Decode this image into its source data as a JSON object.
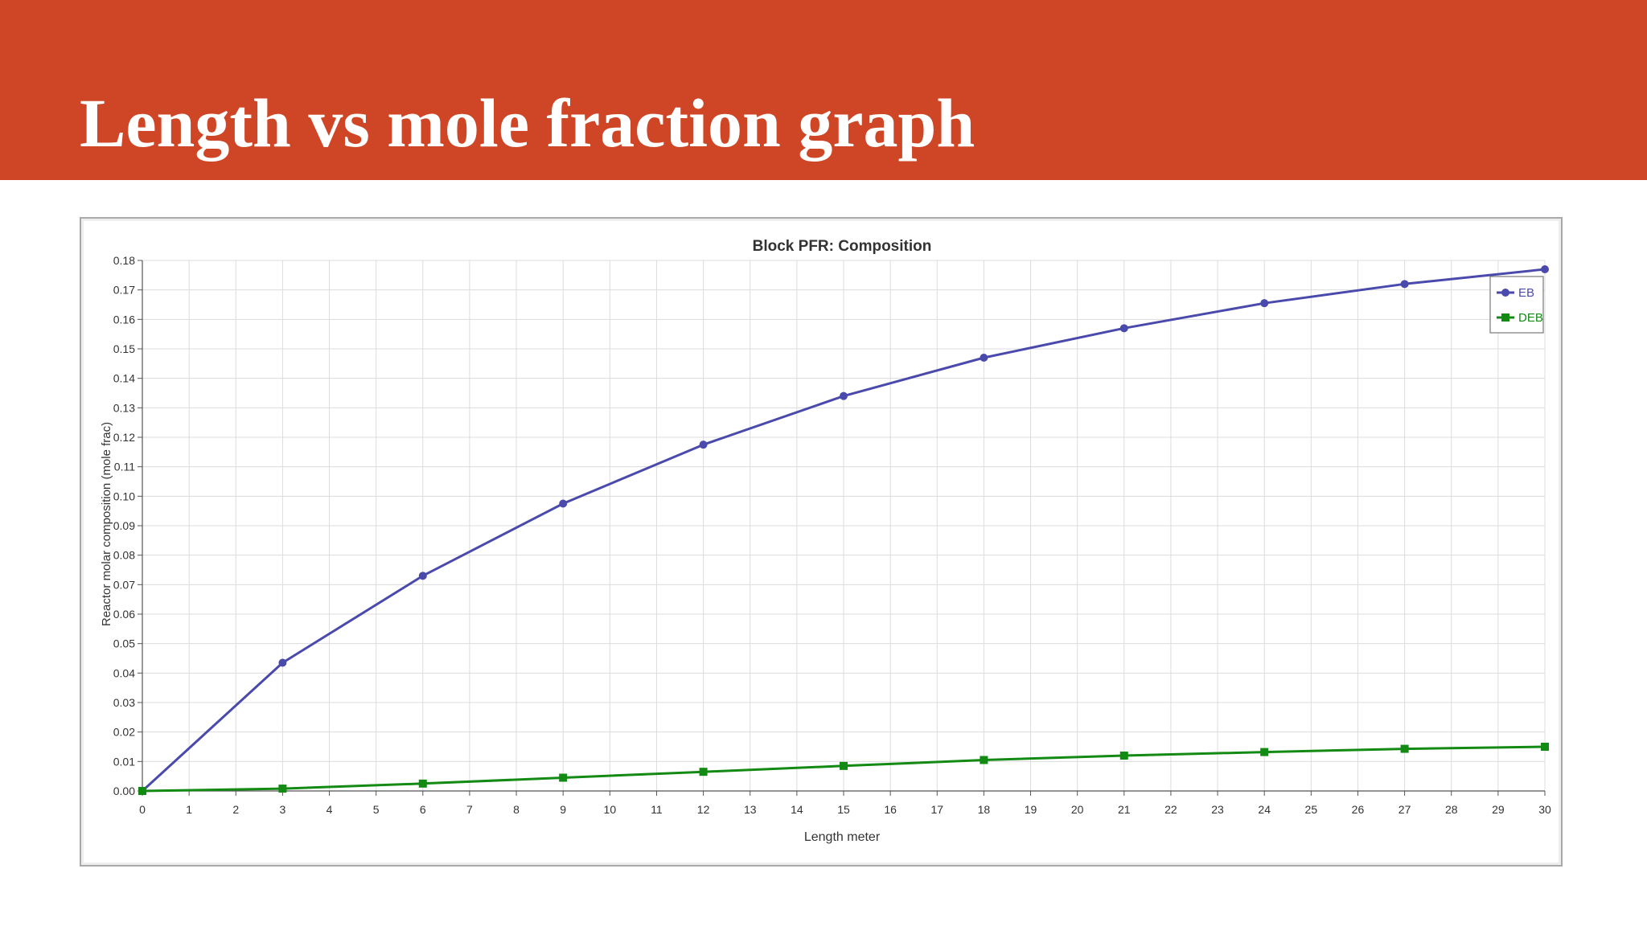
{
  "slide": {
    "title": "Length vs mole fraction graph"
  },
  "colors": {
    "banner": "#cf4627",
    "eb": "#4a4aad",
    "deb": "#138a13"
  },
  "chart_data": {
    "type": "line",
    "title": "Block PFR: Composition",
    "xlabel": "Length meter",
    "ylabel": "Reactor molar composition (mole frac)",
    "xlim": [
      0,
      30
    ],
    "ylim": [
      0,
      0.18
    ],
    "xticks": [
      "0",
      "1",
      "2",
      "3",
      "4",
      "5",
      "6",
      "7",
      "8",
      "9",
      "10",
      "11",
      "12",
      "13",
      "14",
      "15",
      "16",
      "17",
      "18",
      "19",
      "20",
      "21",
      "22",
      "23",
      "24",
      "25",
      "26",
      "27",
      "28",
      "29",
      "30"
    ],
    "yticks": [
      "0.00",
      "0.01",
      "0.02",
      "0.03",
      "0.04",
      "0.05",
      "0.06",
      "0.07",
      "0.08",
      "0.09",
      "0.10",
      "0.11",
      "0.12",
      "0.13",
      "0.14",
      "0.15",
      "0.16",
      "0.17",
      "0.18"
    ],
    "grid": true,
    "legend_position": "top-right",
    "x": [
      0,
      3,
      6,
      9,
      12,
      15,
      18,
      21,
      24,
      27,
      30
    ],
    "series": [
      {
        "name": "EB",
        "marker": "circle",
        "color": "#4a4aad",
        "values": [
          0.0,
          0.0435,
          0.073,
          0.0975,
          0.1175,
          0.134,
          0.147,
          0.157,
          0.1655,
          0.172,
          0.177
        ]
      },
      {
        "name": "DEB",
        "marker": "square",
        "color": "#138a13",
        "values": [
          0.0,
          0.0008,
          0.0025,
          0.0045,
          0.0065,
          0.0085,
          0.0105,
          0.012,
          0.0132,
          0.0143,
          0.015
        ]
      }
    ]
  }
}
